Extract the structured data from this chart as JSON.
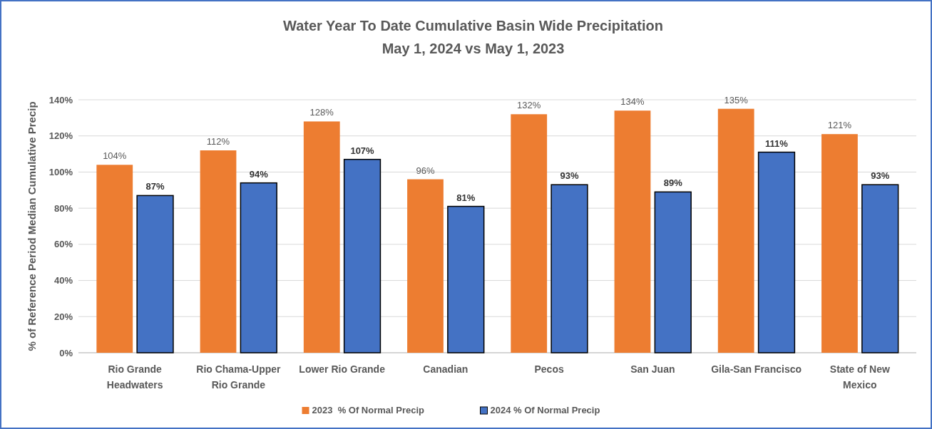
{
  "chart_data": {
    "type": "bar",
    "title": "Water Year To Date Cumulative Basin Wide Precipitation",
    "subtitle": "May 1, 2024 vs  May 1, 2023",
    "ylabel": "% of Reference Period Median Cumulative Precip",
    "categories": [
      "Rio Grande\nHeadwaters",
      "Rio Chama-Upper\nRio Grande",
      "Lower Rio Grande",
      "Canadian",
      "Pecos",
      "San Juan",
      "Gila-San Francisco",
      "State of New\nMexico"
    ],
    "series": [
      {
        "name": "2023  % Of Normal Precip",
        "color": "#ed7d31",
        "values": [
          104,
          112,
          128,
          96,
          132,
          134,
          135,
          121
        ],
        "value_labels": [
          "104%",
          "112%",
          "128%",
          "96%",
          "132%",
          "134%",
          "135%",
          "121%"
        ]
      },
      {
        "name": "2024 % Of Normal Precip",
        "color": "#4472c4",
        "values": [
          87,
          94,
          107,
          81,
          93,
          89,
          111,
          93
        ],
        "value_labels": [
          "87%",
          "94%",
          "107%",
          "81%",
          "93%",
          "89%",
          "111%",
          "93%"
        ]
      }
    ],
    "ylim": [
      0,
      140
    ],
    "yticks": [
      {
        "value": 0,
        "label": "0%"
      },
      {
        "value": 20,
        "label": "20%"
      },
      {
        "value": 40,
        "label": "40%"
      },
      {
        "value": 60,
        "label": "60%"
      },
      {
        "value": 80,
        "label": "80%"
      },
      {
        "value": 100,
        "label": "100%"
      },
      {
        "value": 120,
        "label": "120%"
      },
      {
        "value": 140,
        "label": "140%"
      }
    ],
    "grid": "y",
    "legend": "bottom"
  }
}
